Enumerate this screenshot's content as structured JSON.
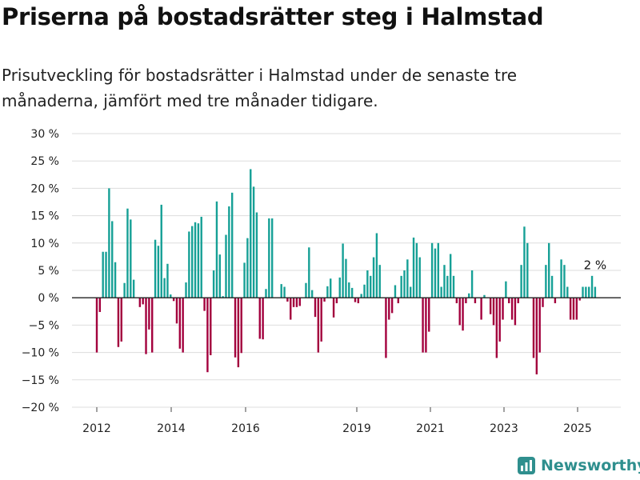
{
  "title": "Priserna på bostadsrätter steg i Halmstad",
  "subtitle": "Prisutveckling för bostadsrätter i Halmstad under de senaste tre månaderna, jämfört med tre månader tidigare.",
  "brand": "Newsworthy",
  "colors": {
    "positive": "#16a096",
    "negative": "#a3003d",
    "grid": "#dddddd",
    "brand": "#2f8f8e"
  },
  "chart_data": {
    "type": "bar",
    "yticks": [
      "30 %",
      "25 %",
      "20 %",
      "15 %",
      "10 %",
      "5 %",
      "0 %",
      "−5 %",
      "−10 %",
      "−15 %",
      "−20 %"
    ],
    "xticks": [
      "2012",
      "2014",
      "2016",
      "2019",
      "2021",
      "2023",
      "2025"
    ],
    "ylim": [
      -20,
      30
    ],
    "annotation": "2 %",
    "values": [
      -10,
      -2.6,
      8.4,
      8.4,
      20,
      14,
      6.5,
      -9,
      -8,
      2.7,
      16.3,
      14.3,
      3.3,
      0,
      -1.7,
      -1.2,
      -10.3,
      -5.8,
      -10,
      10.6,
      9.5,
      17,
      3.6,
      6.2,
      0.6,
      -0.6,
      -4.7,
      -9.3,
      -10,
      2.8,
      12.1,
      13.1,
      13.8,
      13.6,
      14.8,
      -2.4,
      -13.6,
      -10.5,
      5,
      17.6,
      7.9,
      0.3,
      11.5,
      16.7,
      19.2,
      -10.9,
      -12.7,
      -10.1,
      6.4,
      10.9,
      23.5,
      20.3,
      15.6,
      -7.5,
      -7.6,
      1.6,
      14.5,
      14.5,
      0,
      0,
      2.5,
      2,
      -0.7,
      -4,
      -1.7,
      -1.7,
      -1.5,
      0,
      2.7,
      9.2,
      1.4,
      -3.5,
      -10,
      -8,
      -0.7,
      2.1,
      3.5,
      -3.6,
      -1,
      3.7,
      9.9,
      7.1,
      2.8,
      1.8,
      -0.8,
      -1,
      0.7,
      2.4,
      5,
      4,
      7.4,
      11.8,
      6,
      0,
      -11,
      -4,
      -2.8,
      2.3,
      -1,
      4,
      5,
      7,
      2,
      11,
      10,
      7.4,
      -10,
      -10,
      -6.2,
      10,
      9,
      10,
      2,
      6,
      4,
      8,
      4,
      -1,
      -5,
      -6,
      -1,
      0.8,
      5,
      -1,
      0,
      -4,
      0.5,
      0,
      -3,
      -5,
      -11,
      -8,
      -4,
      3,
      -1,
      -4,
      -5,
      -1,
      6,
      13,
      10,
      0,
      -11,
      -14,
      -10,
      -1.7,
      6,
      10,
      4,
      -1,
      0,
      7,
      6,
      2,
      -4,
      -4,
      -4,
      -0.5,
      2,
      2,
      2,
      4,
      2
    ]
  }
}
